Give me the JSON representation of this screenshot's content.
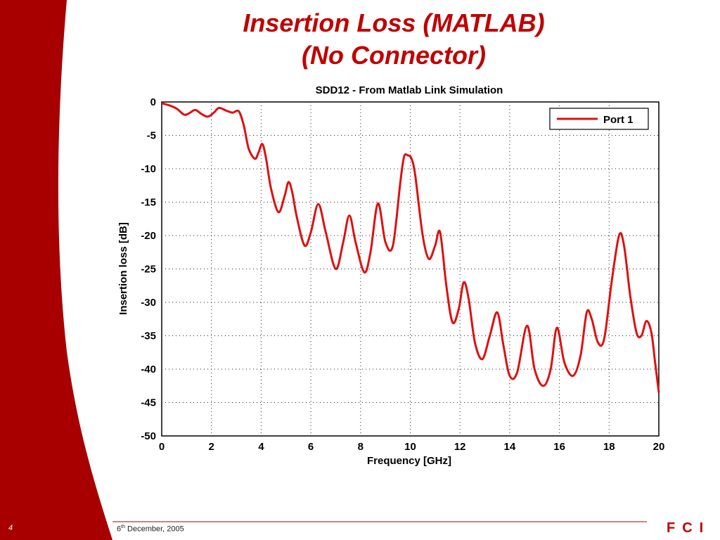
{
  "slide": {
    "title_line1": "Insertion Loss (MATLAB)",
    "title_line2": "(No Connector)",
    "page_number": "4",
    "date_day": "6",
    "date_suffix": "th",
    "date_rest": " December, 2005",
    "logo_text": "FCI",
    "accent_color": "#a80000"
  },
  "chart_data": {
    "type": "line",
    "title": "SDD12 - From Matlab Link Simulation",
    "xlabel": "Frequency [GHz]",
    "ylabel": "Insertion loss [dB]",
    "xlim": [
      0,
      20
    ],
    "ylim": [
      -50,
      0
    ],
    "xticks": [
      0,
      2,
      4,
      6,
      8,
      10,
      12,
      14,
      16,
      18,
      20
    ],
    "yticks": [
      0,
      -5,
      -10,
      -15,
      -20,
      -25,
      -30,
      -35,
      -40,
      -45,
      -50
    ],
    "grid": true,
    "legend_position": "top-right",
    "series": [
      {
        "name": "Port 1",
        "color": "#dd1111",
        "x": [
          0,
          0.3,
          0.6,
          0.9,
          1.1,
          1.35,
          1.6,
          1.85,
          2.1,
          2.3,
          2.6,
          2.85,
          3.1,
          3.3,
          3.5,
          3.75,
          3.9,
          4.05,
          4.2,
          4.4,
          4.7,
          4.95,
          5.1,
          5.25,
          5.45,
          5.75,
          6.0,
          6.3,
          6.6,
          7.0,
          7.3,
          7.55,
          7.8,
          8.15,
          8.4,
          8.7,
          9.0,
          9.3,
          9.6,
          9.75,
          9.9,
          10.05,
          10.2,
          10.5,
          10.75,
          11.0,
          11.2,
          11.45,
          11.7,
          11.95,
          12.15,
          12.35,
          12.6,
          12.9,
          13.2,
          13.5,
          13.75,
          14.0,
          14.3,
          14.7,
          15.0,
          15.35,
          15.65,
          15.9,
          16.2,
          16.55,
          16.85,
          17.1,
          17.3,
          17.55,
          17.8,
          18.1,
          18.4,
          18.6,
          18.85,
          19.1,
          19.3,
          19.5,
          19.7,
          19.85,
          20
        ],
        "values": [
          -0.2,
          -0.5,
          -1.0,
          -1.9,
          -1.7,
          -1.2,
          -1.8,
          -2.2,
          -1.6,
          -0.9,
          -1.3,
          -1.6,
          -1.4,
          -3.5,
          -7.0,
          -8.5,
          -7.5,
          -6.3,
          -8.5,
          -13.0,
          -16.5,
          -14.0,
          -12.0,
          -13.5,
          -17.5,
          -21.5,
          -19.5,
          -15.3,
          -19.5,
          -25.0,
          -21.0,
          -17.0,
          -21.0,
          -25.5,
          -22.5,
          -15.2,
          -21.0,
          -21.5,
          -12.0,
          -8.2,
          -8.0,
          -8.5,
          -11.0,
          -20.0,
          -23.5,
          -21.5,
          -19.5,
          -27.5,
          -33.0,
          -31.0,
          -27.0,
          -29.5,
          -36.0,
          -38.5,
          -35.0,
          -31.5,
          -36.5,
          -41.0,
          -40.5,
          -33.5,
          -40.0,
          -42.5,
          -40.0,
          -33.8,
          -39.0,
          -41.0,
          -38.0,
          -31.5,
          -32.5,
          -36.0,
          -35.5,
          -27.0,
          -20.0,
          -21.5,
          -29.0,
          -34.5,
          -35.0,
          -32.8,
          -34.5,
          -39.0,
          -43.5
        ]
      }
    ]
  }
}
